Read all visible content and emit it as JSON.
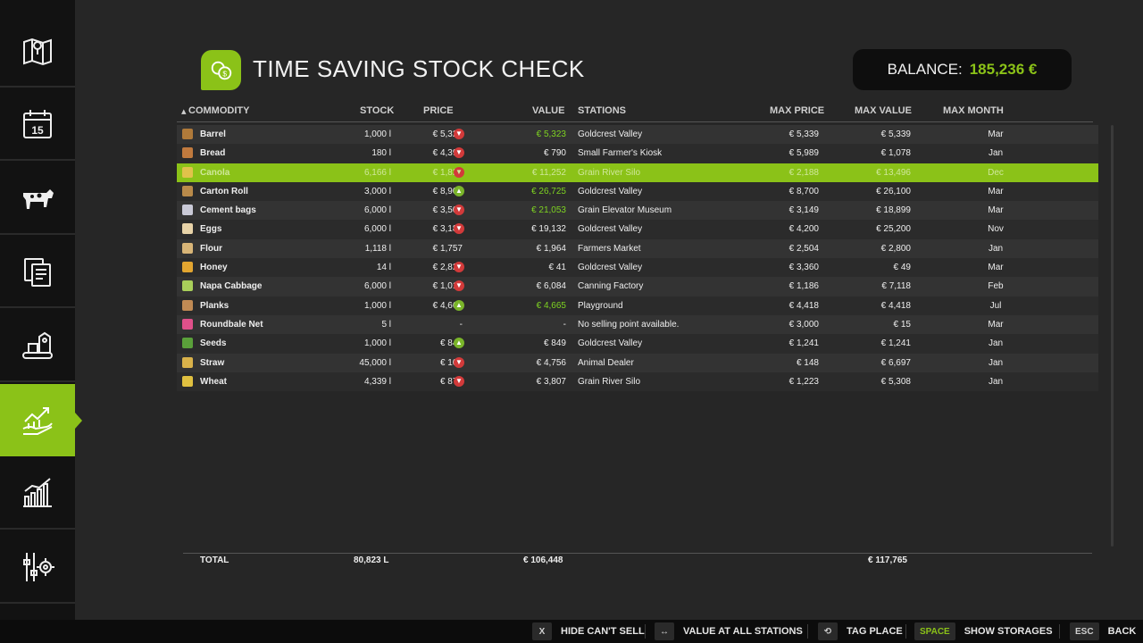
{
  "header": {
    "title": "TIME SAVING STOCK CHECK",
    "balance_label": "BALANCE:",
    "balance_value": "185,236 €"
  },
  "sidebar": {
    "items": [
      {
        "icon": "map-icon",
        "active": false
      },
      {
        "icon": "calendar-icon",
        "label": "15",
        "active": false
      },
      {
        "icon": "cow-icon",
        "active": false
      },
      {
        "icon": "contracts-icon",
        "active": false
      },
      {
        "icon": "production-icon",
        "active": false
      },
      {
        "icon": "finance-trend-icon",
        "active": true
      },
      {
        "icon": "statistics-icon",
        "active": false
      },
      {
        "icon": "settings-icon",
        "active": false
      }
    ]
  },
  "table": {
    "headers": {
      "commodity": "COMMODITY",
      "stock": "STOCK",
      "price": "PRICE",
      "value": "VALUE",
      "stations": "STATIONS",
      "max_price": "MAX PRICE",
      "max_value": "MAX VALUE",
      "max_month": "MAX MONTH"
    },
    "rows": [
      {
        "name": "Barrel",
        "stock": "1,000 l",
        "price": "€ 5,323",
        "trend": "down",
        "value": "€ 5,323",
        "value_green": true,
        "station": "Goldcrest Valley",
        "max_price": "€ 5,339",
        "max_value": "€ 5,339",
        "max_month": "Mar",
        "icon_color": "#b07a3a"
      },
      {
        "name": "Bread",
        "stock": "180 l",
        "price": "€ 4,391",
        "trend": "down",
        "value": "€ 790",
        "value_green": false,
        "station": "Small Farmer's Kiosk",
        "max_price": "€ 5,989",
        "max_value": "€ 1,078",
        "max_month": "Jan",
        "icon_color": "#c07a3e"
      },
      {
        "name": "Canola",
        "stock": "6,166 l",
        "price": "€ 1,824",
        "trend": "down",
        "value": "€ 11,252",
        "value_green": false,
        "station": "Grain River Silo",
        "max_price": "€ 2,188",
        "max_value": "€ 13,496",
        "max_month": "Dec",
        "icon_color": "#e0c24a",
        "selected": true
      },
      {
        "name": "Carton Roll",
        "stock": "3,000 l",
        "price": "€ 8,908",
        "trend": "up",
        "value": "€ 26,725",
        "value_green": true,
        "station": "Goldcrest Valley",
        "max_price": "€ 8,700",
        "max_value": "€ 26,100",
        "max_month": "Mar",
        "icon_color": "#b98a4a"
      },
      {
        "name": "Cement bags",
        "stock": "6,000 l",
        "price": "€ 3,508",
        "trend": "down",
        "value": "€ 21,053",
        "value_green": true,
        "station": "Grain Elevator Museum",
        "max_price": "€ 3,149",
        "max_value": "€ 18,899",
        "max_month": "Mar",
        "icon_color": "#c9c9d6"
      },
      {
        "name": "Eggs",
        "stock": "6,000 l",
        "price": "€ 3,188",
        "trend": "down",
        "value": "€ 19,132",
        "value_green": false,
        "station": "Goldcrest Valley",
        "max_price": "€ 4,200",
        "max_value": "€ 25,200",
        "max_month": "Nov",
        "icon_color": "#e8d3a8"
      },
      {
        "name": "Flour",
        "stock": "1,118 l",
        "price": "€ 1,757",
        "trend": "none",
        "value": "€ 1,964",
        "value_green": false,
        "station": "Farmers Market",
        "max_price": "€ 2,504",
        "max_value": "€ 2,800",
        "max_month": "Jan",
        "icon_color": "#d8b577"
      },
      {
        "name": "Honey",
        "stock": "14 l",
        "price": "€ 2,820",
        "trend": "down",
        "value": "€ 41",
        "value_green": false,
        "station": "Goldcrest Valley",
        "max_price": "€ 3,360",
        "max_value": "€ 49",
        "max_month": "Mar",
        "icon_color": "#e2a530"
      },
      {
        "name": "Napa Cabbage",
        "stock": "6,000 l",
        "price": "€ 1,014",
        "trend": "down",
        "value": "€ 6,084",
        "value_green": false,
        "station": "Canning Factory",
        "max_price": "€ 1,186",
        "max_value": "€ 7,118",
        "max_month": "Feb",
        "icon_color": "#a9cf5a"
      },
      {
        "name": "Planks",
        "stock": "1,000 l",
        "price": "€ 4,665",
        "trend": "up",
        "value": "€ 4,665",
        "value_green": true,
        "station": "Playground",
        "max_price": "€ 4,418",
        "max_value": "€ 4,418",
        "max_month": "Jul",
        "icon_color": "#c08a54"
      },
      {
        "name": "Roundbale Net",
        "stock": "5 l",
        "price": "-",
        "trend": "none",
        "value": "-",
        "value_green": false,
        "station": "No selling point available.",
        "max_price": "€ 3,000",
        "max_value": "€ 15",
        "max_month": "Mar",
        "icon_color": "#e0508a"
      },
      {
        "name": "Seeds",
        "stock": "1,000 l",
        "price": "€ 849",
        "trend": "up",
        "value": "€ 849",
        "value_green": false,
        "station": "Goldcrest Valley",
        "max_price": "€ 1,241",
        "max_value": "€ 1,241",
        "max_month": "Jan",
        "icon_color": "#5aa03a"
      },
      {
        "name": "Straw",
        "stock": "45,000 l",
        "price": "€ 105",
        "trend": "down",
        "value": "€ 4,756",
        "value_green": false,
        "station": "Animal Dealer",
        "max_price": "€ 148",
        "max_value": "€ 6,697",
        "max_month": "Jan",
        "icon_color": "#d9b24a"
      },
      {
        "name": "Wheat",
        "stock": "4,339 l",
        "price": "€ 877",
        "trend": "down",
        "value": "€ 3,807",
        "value_green": false,
        "station": "Grain River Silo",
        "max_price": "€ 1,223",
        "max_value": "€ 5,308",
        "max_month": "Jan",
        "icon_color": "#e0c040"
      }
    ],
    "total": {
      "label": "TOTAL",
      "stock": "80,823 L",
      "value": "€ 106,448",
      "max_value": "€ 117,765"
    }
  },
  "hints": [
    {
      "key": "X",
      "label": "HIDE CAN'T SELL",
      "green": false
    },
    {
      "key": "↔",
      "label": "VALUE AT ALL STATIONS",
      "green": false
    },
    {
      "key": "⟲",
      "label": "TAG PLACE",
      "green": false
    },
    {
      "key": "SPACE",
      "label": "SHOW STORAGES",
      "green": true
    },
    {
      "key": "ESC",
      "label": "BACK",
      "green": false
    }
  ],
  "colors": {
    "accent": "#8bc218",
    "trend_down": "#d23a3a",
    "trend_up": "#7ab52a",
    "value_green": "#7ed321"
  }
}
